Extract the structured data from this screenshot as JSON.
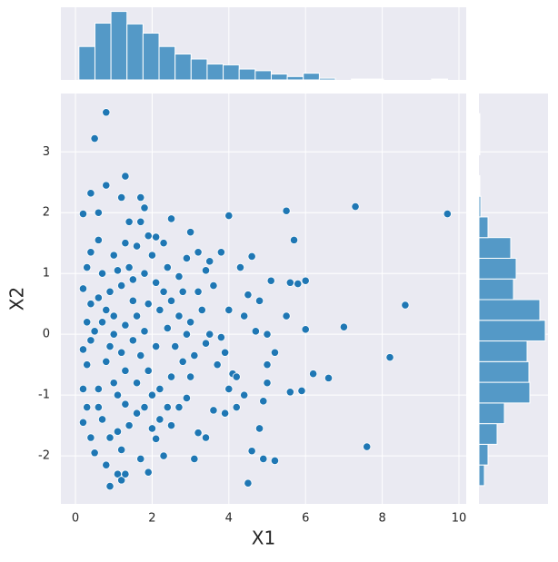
{
  "chart_data": [
    {
      "type": "scatter",
      "xlabel": "X1",
      "ylabel": "X2",
      "color": "#1f77b4",
      "grid": true,
      "xlim": [
        -0.38,
        10.19
      ],
      "ylim": [
        -2.79,
        3.96
      ],
      "xticks": [
        0,
        2,
        4,
        6,
        8,
        10
      ],
      "yticks": [
        -2,
        -1,
        0,
        1,
        2,
        3
      ],
      "x": [
        0.8,
        0.5,
        1.3,
        0.4,
        0.8,
        1.2,
        1.7,
        1.8,
        0.2,
        0.6,
        1.4,
        1.7,
        2.5,
        3.0,
        4.0,
        5.5,
        7.3,
        9.7,
        5.7,
        4.6,
        4.3,
        5.1,
        5.6,
        5.8,
        6.0,
        4.5,
        4.8,
        8.6,
        5.5,
        6.0,
        7.0,
        5.0,
        4.7,
        8.2,
        6.2,
        6.6,
        5.0,
        5.2,
        5.0,
        4.9,
        5.6,
        5.9,
        4.8,
        7.6,
        4.6,
        4.9,
        5.2,
        4.5,
        3.1,
        2.3,
        1.9,
        1.1,
        1.2,
        0.9,
        1.3,
        1.7,
        0.5,
        3.4,
        3.2,
        2.1,
        4.2,
        4.4,
        4.0,
        3.7,
        4.1,
        4.2,
        3.9,
        3.4,
        3.8,
        4.4,
        4.0,
        3.6,
        3.4,
        3.5,
        3.8,
        3.2,
        2.9,
        2.7,
        2.3,
        2.1,
        1.9,
        1.6,
        1.3,
        1.0,
        0.6,
        0.4,
        0.7,
        0.3,
        0.2,
        0.4,
        0.3,
        0.2,
        0.3,
        0.2,
        0.3,
        0.2,
        0.4,
        0.7,
        0.9,
        1.1,
        1.3,
        1.6,
        1.8,
        2.2,
        2.5,
        2.7,
        2.9,
        3.0,
        2.8,
        2.5,
        2.2,
        1.9,
        1.6,
        1.3,
        1.0,
        0.8,
        0.6,
        0.9,
        1.2,
        1.5,
        1.8,
        2.1,
        2.4,
        2.7,
        3.0,
        3.3,
        2.8,
        2.5,
        2.2,
        1.9,
        1.6,
        1.3,
        1.0,
        0.7,
        0.5,
        0.6,
        0.9,
        1.2,
        1.5,
        1.8,
        2.1,
        2.4,
        2.0,
        1.4,
        1.1,
        0.8,
        1.1,
        1.4,
        0.6,
        2.0,
        2.4,
        1.7,
        2.6,
        3.1,
        3.5,
        3.2,
        2.9,
        1.0,
        0.4,
        1.5,
        2.3,
        3.6,
        3.9,
        2.0,
        1.2,
        0.8
      ],
      "y": [
        3.65,
        3.22,
        2.6,
        2.32,
        2.45,
        2.25,
        2.25,
        2.08,
        1.98,
        2.0,
        1.85,
        1.85,
        1.9,
        1.68,
        1.95,
        2.03,
        2.1,
        1.98,
        1.55,
        1.28,
        1.1,
        0.88,
        0.85,
        0.83,
        0.88,
        0.65,
        0.55,
        0.48,
        0.3,
        0.08,
        0.12,
        0.0,
        0.05,
        -0.38,
        -0.65,
        -0.72,
        -0.5,
        -0.3,
        -0.8,
        -1.1,
        -0.95,
        -0.93,
        -1.55,
        -1.85,
        -1.92,
        -2.05,
        -2.08,
        -2.45,
        -2.05,
        -2.0,
        -2.27,
        -2.3,
        -2.4,
        -2.5,
        -2.3,
        -2.05,
        -1.95,
        -1.7,
        -1.62,
        -1.72,
        -1.2,
        -1.0,
        -0.9,
        -0.5,
        -0.65,
        -0.7,
        -0.3,
        -0.15,
        -0.05,
        0.3,
        0.4,
        0.8,
        1.05,
        1.2,
        1.35,
        1.35,
        1.25,
        0.95,
        1.5,
        1.6,
        1.62,
        1.45,
        1.5,
        1.3,
        1.55,
        1.35,
        1.0,
        1.1,
        0.75,
        0.5,
        0.2,
        -0.25,
        -0.5,
        -0.9,
        -1.2,
        -1.45,
        -1.7,
        -1.4,
        -1.7,
        -1.6,
        -1.15,
        -1.3,
        -1.2,
        -1.4,
        -1.5,
        -1.2,
        -1.05,
        -0.7,
        -0.45,
        -0.7,
        -0.9,
        -0.6,
        -0.8,
        -0.6,
        -0.8,
        -0.45,
        -0.9,
        -0.2,
        -0.3,
        -0.1,
        0.05,
        -0.2,
        0.1,
        0.3,
        0.2,
        0.4,
        0.7,
        0.55,
        0.4,
        0.5,
        0.3,
        0.15,
        0.3,
        0.2,
        0.05,
        0.6,
        0.7,
        0.8,
        0.9,
        1.0,
        0.85,
        1.1,
        1.3,
        1.1,
        1.05,
        0.4,
        -1.0,
        -1.5,
        -1.2,
        -1.0,
        -1.2,
        -0.35,
        -0.2,
        -0.35,
        0.0,
        0.7,
        0.0,
        0.0,
        -0.1,
        0.55,
        0.7,
        -1.25,
        -1.3,
        -1.55,
        -1.9,
        -2.15
      ]
    },
    {
      "type": "histogram",
      "orientation": "vertical",
      "color": "#5499c7",
      "bins": [
        0.09,
        0.508,
        0.926,
        1.344,
        1.762,
        2.18,
        2.598,
        3.016,
        3.434,
        3.852,
        4.27,
        4.688,
        5.106,
        5.524,
        5.942,
        6.36,
        6.778,
        7.196,
        7.614,
        8.032,
        8.45,
        8.868,
        9.286,
        9.704
      ],
      "counts": [
        40,
        68,
        82,
        67,
        56,
        40,
        31,
        25,
        19,
        18,
        13,
        11,
        7,
        4,
        8,
        2,
        0,
        1,
        1,
        0,
        0,
        0,
        1
      ],
      "ylim": [
        0,
        87
      ]
    },
    {
      "type": "histogram",
      "orientation": "horizontal",
      "color": "#5499c7",
      "bins": [
        -2.49,
        -2.15,
        -1.81,
        -1.47,
        -1.13,
        -0.79,
        -0.45,
        -0.11,
        0.23,
        0.57,
        0.91,
        1.25,
        1.59,
        1.93,
        2.27,
        2.61,
        2.95,
        3.29,
        3.63
      ],
      "counts": [
        6,
        10,
        20,
        28,
        56,
        55,
        53,
        73,
        67,
        38,
        41,
        35,
        10,
        2,
        1,
        0,
        1,
        1
      ],
      "xlim": [
        0,
        76
      ]
    }
  ]
}
